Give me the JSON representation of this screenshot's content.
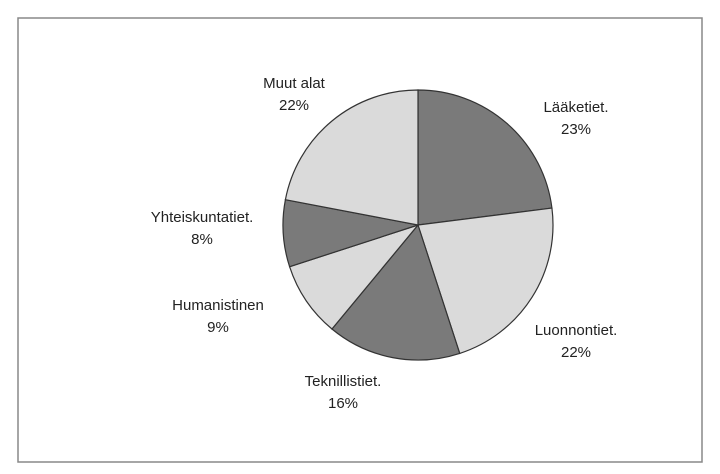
{
  "chart_data": {
    "type": "pie",
    "categories": [
      "Lääketiet.",
      "Luonnontiet.",
      "Teknillistiet.",
      "Humanistinen",
      "Yhteiskuntatiet.",
      "Muut alat"
    ],
    "values": [
      23,
      22,
      16,
      9,
      8,
      22
    ],
    "value_labels": [
      "23%",
      "22%",
      "16%",
      "9%",
      "8%",
      "22%"
    ],
    "colors": [
      "#7a7a7a",
      "#dadada",
      "#7a7a7a",
      "#dadada",
      "#7a7a7a",
      "#dadada"
    ]
  }
}
